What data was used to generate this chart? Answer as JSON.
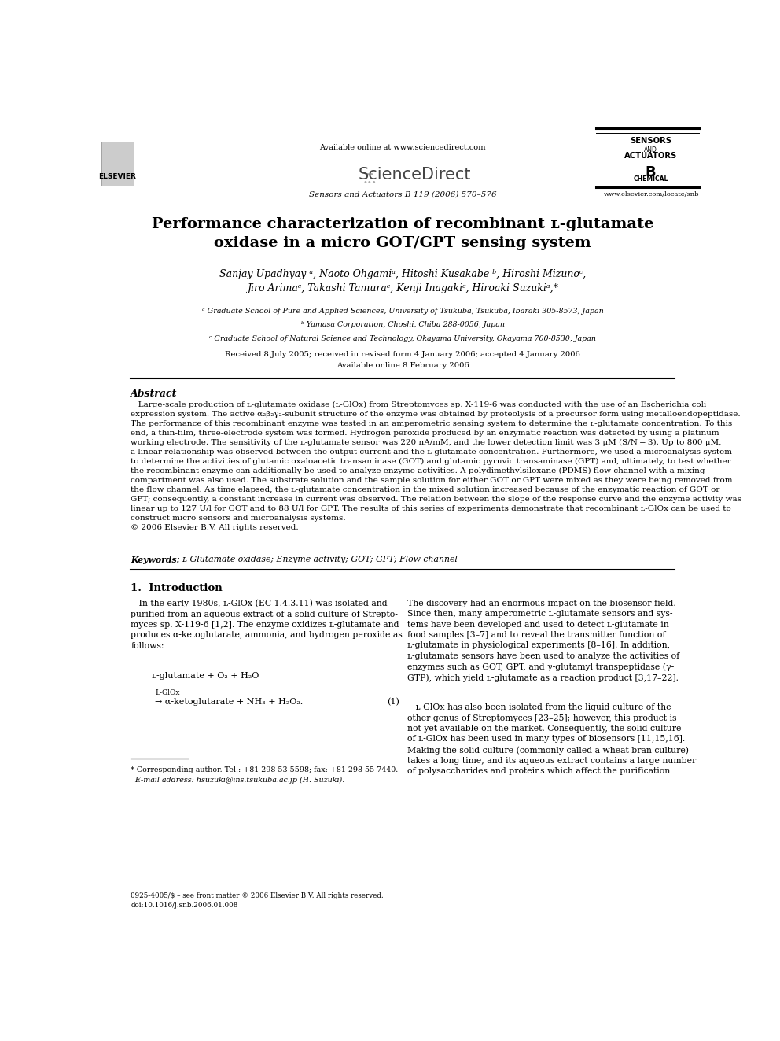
{
  "background_color": "#ffffff",
  "page_width": 9.92,
  "page_height": 13.23,
  "dpi": 100,
  "header": {
    "available_online": "Available online at www.sciencedirect.com",
    "journal_line": "Sensors and Actuators B 119 (2006) 570–576",
    "website": "www.elsevier.com/locate/snb"
  },
  "title": "Performance characterization of recombinant ʟ-glutamate\noxidase in a micro GOT/GPT sensing system",
  "authors": "Sanjay Upadhyay ᵃ, Naoto Ohgamiᵃ, Hitoshi Kusakabe ᵇ, Hiroshi Mizunoᶜ,\nJiro Arimaᶜ, Takashi Tamuraᶜ, Kenji Inagakiᶜ, Hiroaki Suzukiᵃ,*",
  "affiliations": [
    "ᵃ Graduate School of Pure and Applied Sciences, University of Tsukuba, Tsukuba, Ibaraki 305-8573, Japan",
    "ᵇ Yamasa Corporation, Choshi, Chiba 288-0056, Japan",
    "ᶜ Graduate School of Natural Science and Technology, Okayama University, Okayama 700-8530, Japan"
  ],
  "received_line": "Received 8 July 2005; received in revised form 4 January 2006; accepted 4 January 2006",
  "available_line": "Available online 8 February 2006",
  "abstract_title": "Abstract",
  "keywords_label": "Keywords:",
  "keywords_text": "  ʟ-Glutamate oxidase; Enzyme activity; GOT; GPT; Flow channel",
  "section1_title": "1.  Introduction",
  "equation_line1": "ʟ-glutamate + O₂ + H₂O",
  "equation_arrow": "L-GlOx",
  "equation_line2": "→ α-ketoglutarate + NH₃ + H₂O₂.",
  "equation_number": "(1)",
  "footnote_star": "* Corresponding author. Tel.: +81 298 53 5598; fax: +81 298 55 7440.",
  "footnote_email": "  E-mail address: hsuzuki@ins.tsukuba.ac.jp (H. Suzuki).",
  "copyright_line1": "0925-4005/$ – see front matter © 2006 Elsevier B.V. All rights reserved.",
  "copyright_line2": "doi:10.1016/j.snb.2006.01.008"
}
